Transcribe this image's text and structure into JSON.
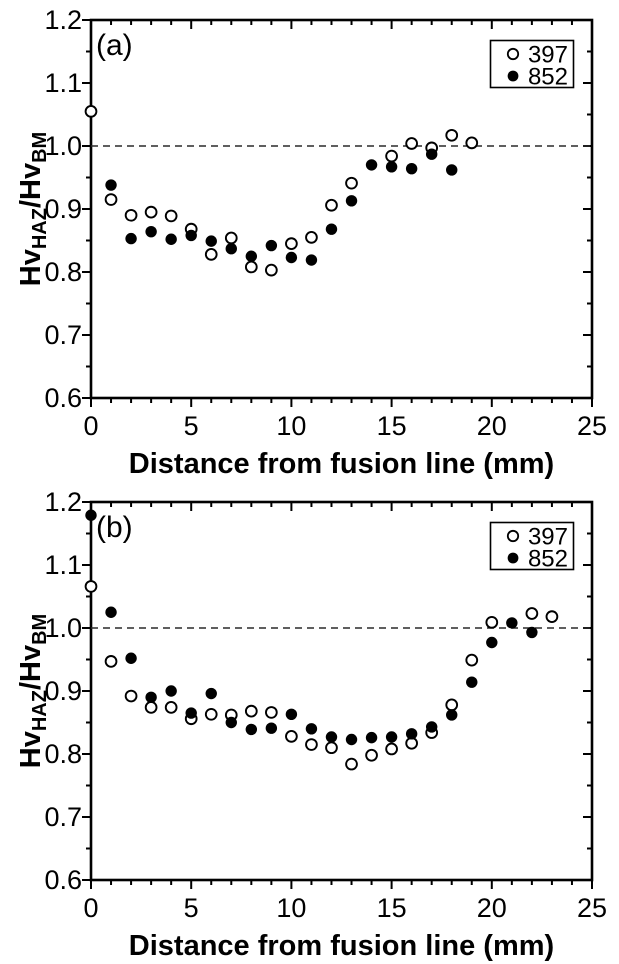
{
  "figure": {
    "background": "#ffffff",
    "colors": {
      "axis": "#000000",
      "marker_open_fill": "#ffffff",
      "marker_filled_fill": "#000000",
      "marker_stroke": "#000000",
      "ref_line": "#2a2a2a",
      "text": "#000000",
      "legend_border": "#000000",
      "legend_fill": "#ffffff"
    }
  },
  "chart_data": [
    {
      "type": "scatter",
      "panel_label": "(a)",
      "xlabel": "Distance from fusion line (mm)",
      "ylabel_parts": [
        {
          "text": "Hv",
          "sub": false
        },
        {
          "text": "HAZ",
          "sub": true
        },
        {
          "text": "/Hv",
          "sub": false
        },
        {
          "text": "BM",
          "sub": true
        }
      ],
      "xlim": [
        0,
        25
      ],
      "ylim": [
        0.6,
        1.2
      ],
      "xticks": [
        0,
        5,
        10,
        15,
        20,
        25
      ],
      "xtick_labels": [
        "0",
        "5",
        "10",
        "15",
        "20",
        "25"
      ],
      "yticks": [
        0.6,
        0.7,
        0.8,
        0.9,
        1.0,
        1.1,
        1.2
      ],
      "ytick_labels": [
        "0.6",
        "0.7",
        "0.8",
        "0.9",
        "1.0",
        "1.1",
        "1.2"
      ],
      "x_minor_step": 1,
      "y_minor_step": 0.05,
      "ref_line_y": 1.0,
      "grid": false,
      "legend": {
        "position": "top-right",
        "entries": [
          {
            "label": "397",
            "marker": "open"
          },
          {
            "label": "852",
            "marker": "filled"
          }
        ]
      },
      "series": [
        {
          "name": "397",
          "marker": "open",
          "points": [
            [
              0,
              1.055
            ],
            [
              1,
              0.915
            ],
            [
              2,
              0.89
            ],
            [
              3,
              0.895
            ],
            [
              4,
              0.889
            ],
            [
              5,
              0.868
            ],
            [
              6,
              0.828
            ],
            [
              7,
              0.854
            ],
            [
              8,
              0.808
            ],
            [
              9,
              0.803
            ],
            [
              10,
              0.845
            ],
            [
              11,
              0.855
            ],
            [
              12,
              0.906
            ],
            [
              13,
              0.941
            ],
            [
              15,
              0.984
            ],
            [
              16,
              1.004
            ],
            [
              17,
              0.997
            ],
            [
              18,
              1.017
            ],
            [
              19,
              1.005
            ]
          ]
        },
        {
          "name": "852",
          "marker": "filled",
          "points": [
            [
              1,
              0.938
            ],
            [
              2,
              0.853
            ],
            [
              3,
              0.864
            ],
            [
              4,
              0.852
            ],
            [
              5,
              0.858
            ],
            [
              6,
              0.849
            ],
            [
              7,
              0.837
            ],
            [
              8,
              0.825
            ],
            [
              9,
              0.842
            ],
            [
              10,
              0.823
            ],
            [
              11,
              0.819
            ],
            [
              12,
              0.868
            ],
            [
              13,
              0.913
            ],
            [
              14,
              0.97
            ],
            [
              15,
              0.967
            ],
            [
              16,
              0.964
            ],
            [
              17,
              0.987
            ],
            [
              18,
              0.962
            ]
          ]
        }
      ]
    },
    {
      "type": "scatter",
      "panel_label": "(b)",
      "xlabel": "Distance from fusion line (mm)",
      "ylabel_parts": [
        {
          "text": "Hv",
          "sub": false
        },
        {
          "text": "HAZ",
          "sub": true
        },
        {
          "text": "/Hv",
          "sub": false
        },
        {
          "text": "BM",
          "sub": true
        }
      ],
      "xlim": [
        0,
        25
      ],
      "ylim": [
        0.6,
        1.2
      ],
      "xticks": [
        0,
        5,
        10,
        15,
        20,
        25
      ],
      "xtick_labels": [
        "0",
        "5",
        "10",
        "15",
        "20",
        "25"
      ],
      "yticks": [
        0.6,
        0.7,
        0.8,
        0.9,
        1.0,
        1.1,
        1.2
      ],
      "ytick_labels": [
        "0.6",
        "0.7",
        "0.8",
        "0.9",
        "1.0",
        "1.1",
        "1.2"
      ],
      "x_minor_step": 1,
      "y_minor_step": 0.05,
      "ref_line_y": 1.0,
      "grid": false,
      "legend": {
        "position": "top-right",
        "entries": [
          {
            "label": "397",
            "marker": "open"
          },
          {
            "label": "852",
            "marker": "filled"
          }
        ]
      },
      "series": [
        {
          "name": "397",
          "marker": "open",
          "points": [
            [
              0,
              1.066
            ],
            [
              1,
              0.947
            ],
            [
              2,
              0.892
            ],
            [
              3,
              0.874
            ],
            [
              4,
              0.874
            ],
            [
              5,
              0.856
            ],
            [
              6,
              0.863
            ],
            [
              7,
              0.862
            ],
            [
              8,
              0.868
            ],
            [
              9,
              0.866
            ],
            [
              10,
              0.828
            ],
            [
              11,
              0.815
            ],
            [
              12,
              0.81
            ],
            [
              13,
              0.784
            ],
            [
              14,
              0.798
            ],
            [
              15,
              0.808
            ],
            [
              16,
              0.817
            ],
            [
              17,
              0.834
            ],
            [
              18,
              0.878
            ],
            [
              19,
              0.949
            ],
            [
              20,
              1.009
            ],
            [
              22,
              1.023
            ],
            [
              23,
              1.018
            ]
          ]
        },
        {
          "name": "852",
          "marker": "filled",
          "points": [
            [
              0,
              1.179
            ],
            [
              1,
              1.025
            ],
            [
              2,
              0.952
            ],
            [
              3,
              0.89
            ],
            [
              4,
              0.9
            ],
            [
              5,
              0.865
            ],
            [
              6,
              0.896
            ],
            [
              7,
              0.85
            ],
            [
              8,
              0.839
            ],
            [
              9,
              0.841
            ],
            [
              10,
              0.863
            ],
            [
              11,
              0.84
            ],
            [
              12,
              0.827
            ],
            [
              13,
              0.823
            ],
            [
              14,
              0.826
            ],
            [
              15,
              0.827
            ],
            [
              16,
              0.832
            ],
            [
              17,
              0.843
            ],
            [
              18,
              0.862
            ],
            [
              19,
              0.914
            ],
            [
              20,
              0.977
            ],
            [
              21,
              1.008
            ],
            [
              22,
              0.993
            ]
          ]
        }
      ]
    }
  ]
}
